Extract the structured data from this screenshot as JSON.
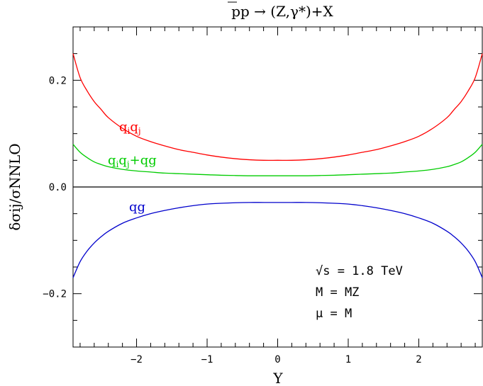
{
  "chart_data": {
    "type": "line",
    "title": "pp → (Z,γ*)+X",
    "xlabel": "Y",
    "ylabel": "δσij/σNNLO",
    "xlim": [
      -2.9,
      2.9
    ],
    "ylim": [
      -0.3,
      0.3
    ],
    "grid": false,
    "xticks": [
      -2,
      -1,
      0,
      1,
      2
    ],
    "xtick_labels": [
      "−2",
      "−1",
      "0",
      "1",
      "2"
    ],
    "yticks": [
      -0.2,
      0.0,
      0.2
    ],
    "ytick_labels": [
      "−0.2",
      "0.0",
      "0.2"
    ],
    "annotations": [
      "√s = 1.8 TeV",
      "M = MZ",
      "μ = M"
    ],
    "series": [
      {
        "name": "qiqj",
        "color": "#ff0000",
        "x": [
          -2.9,
          -2.8,
          -2.7,
          -2.6,
          -2.5,
          -2.4,
          -2.2,
          -2.0,
          -1.8,
          -1.6,
          -1.4,
          -1.2,
          -1.0,
          -0.8,
          -0.6,
          -0.4,
          -0.2,
          0.0,
          0.2,
          0.4,
          0.6,
          0.8,
          1.0,
          1.2,
          1.4,
          1.6,
          1.8,
          2.0,
          2.2,
          2.4,
          2.5,
          2.6,
          2.7,
          2.8,
          2.9
        ],
        "y": [
          0.25,
          0.205,
          0.18,
          0.16,
          0.145,
          0.13,
          0.11,
          0.095,
          0.085,
          0.077,
          0.07,
          0.065,
          0.06,
          0.056,
          0.053,
          0.051,
          0.05,
          0.05,
          0.05,
          0.051,
          0.053,
          0.056,
          0.06,
          0.065,
          0.07,
          0.077,
          0.085,
          0.095,
          0.11,
          0.13,
          0.145,
          0.16,
          0.18,
          0.205,
          0.25
        ]
      },
      {
        "name": "qiqj+qg",
        "color": "#00cc00",
        "x": [
          -2.9,
          -2.8,
          -2.7,
          -2.6,
          -2.5,
          -2.4,
          -2.2,
          -2.0,
          -1.8,
          -1.6,
          -1.4,
          -1.2,
          -1.0,
          -0.8,
          -0.6,
          -0.4,
          -0.2,
          0.0,
          0.2,
          0.4,
          0.6,
          0.8,
          1.0,
          1.2,
          1.4,
          1.6,
          1.8,
          2.0,
          2.2,
          2.4,
          2.5,
          2.6,
          2.7,
          2.8,
          2.9
        ],
        "y": [
          0.08,
          0.065,
          0.055,
          0.047,
          0.042,
          0.038,
          0.033,
          0.03,
          0.028,
          0.026,
          0.025,
          0.024,
          0.023,
          0.022,
          0.0215,
          0.021,
          0.021,
          0.021,
          0.021,
          0.021,
          0.0215,
          0.022,
          0.023,
          0.024,
          0.025,
          0.026,
          0.028,
          0.03,
          0.033,
          0.038,
          0.042,
          0.047,
          0.055,
          0.065,
          0.08
        ]
      },
      {
        "name": "qg",
        "color": "#0000cc",
        "x": [
          -2.9,
          -2.8,
          -2.7,
          -2.6,
          -2.5,
          -2.4,
          -2.2,
          -2.0,
          -1.8,
          -1.6,
          -1.4,
          -1.2,
          -1.0,
          -0.8,
          -0.6,
          -0.4,
          -0.2,
          0.0,
          0.2,
          0.4,
          0.6,
          0.8,
          1.0,
          1.2,
          1.4,
          1.6,
          1.8,
          2.0,
          2.2,
          2.4,
          2.5,
          2.6,
          2.7,
          2.8,
          2.9
        ],
        "y": [
          -0.17,
          -0.14,
          -0.12,
          -0.105,
          -0.093,
          -0.083,
          -0.068,
          -0.058,
          -0.05,
          -0.044,
          -0.039,
          -0.035,
          -0.032,
          -0.0305,
          -0.0295,
          -0.029,
          -0.029,
          -0.029,
          -0.029,
          -0.029,
          -0.0295,
          -0.0305,
          -0.032,
          -0.035,
          -0.039,
          -0.044,
          -0.05,
          -0.058,
          -0.068,
          -0.083,
          -0.093,
          -0.105,
          -0.12,
          -0.14,
          -0.17
        ]
      }
    ]
  }
}
